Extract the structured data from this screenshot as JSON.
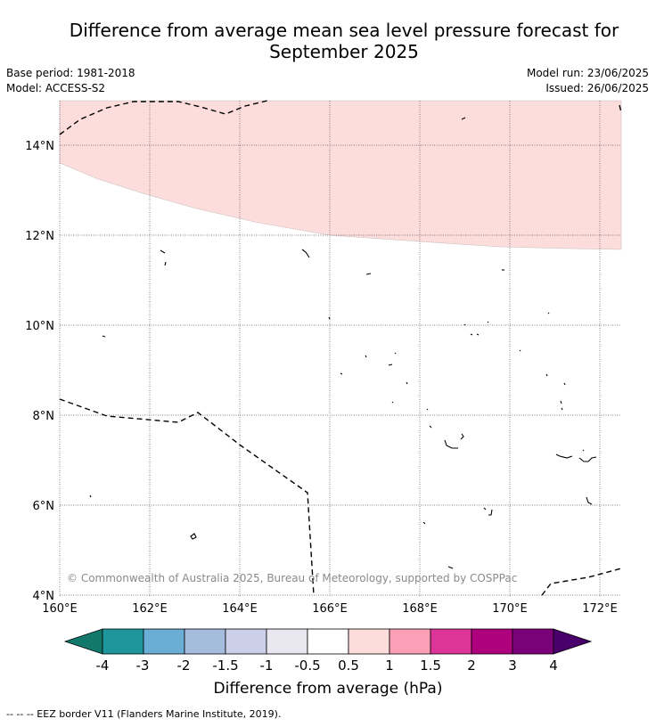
{
  "title_line1": "Difference from average mean sea level pressure forecast for",
  "title_line2": "September 2025",
  "base_period": "Base period: 1981-2018",
  "model": "Model: ACCESS-S2",
  "model_run": "Model run: 23/06/2025",
  "issued": "Issued: 26/06/2025",
  "copyright": "© Commonwealth of Australia 2025, Bureau of Meteorology, supported by COSPPac",
  "map": {
    "lon_ticks": [
      "160°E",
      "162°E",
      "164°E",
      "166°E",
      "168°E",
      "170°E",
      "172°E"
    ],
    "lat_ticks": [
      "14°N",
      "12°N",
      "10°N",
      "8°N",
      "6°N",
      "4°N"
    ],
    "lon_range": [
      160,
      172.5
    ],
    "lat_range": [
      3.9,
      15
    ],
    "shaded_category": "0.5 to 1",
    "shaded_color": "#fddcdc"
  },
  "colorbar": {
    "label": "Difference from average (hPa)",
    "ticks": [
      "-4",
      "-3",
      "-2",
      "-1.5",
      "-1",
      "-0.5",
      "0.5",
      "1",
      "1.5",
      "2",
      "3",
      "4"
    ],
    "colors": [
      "#11786a",
      "#1e959a",
      "#6aaed6",
      "#a6bcdd",
      "#cccfe8",
      "#e9e7ef",
      "#ffffff",
      "#fddcdc",
      "#fa9fb5",
      "#dd3497",
      "#ae017e",
      "#7a0177",
      "#49006a"
    ]
  },
  "legend_border": "--  --  -- EEZ border V11 (Flanders Marine Institute, 2019)."
}
